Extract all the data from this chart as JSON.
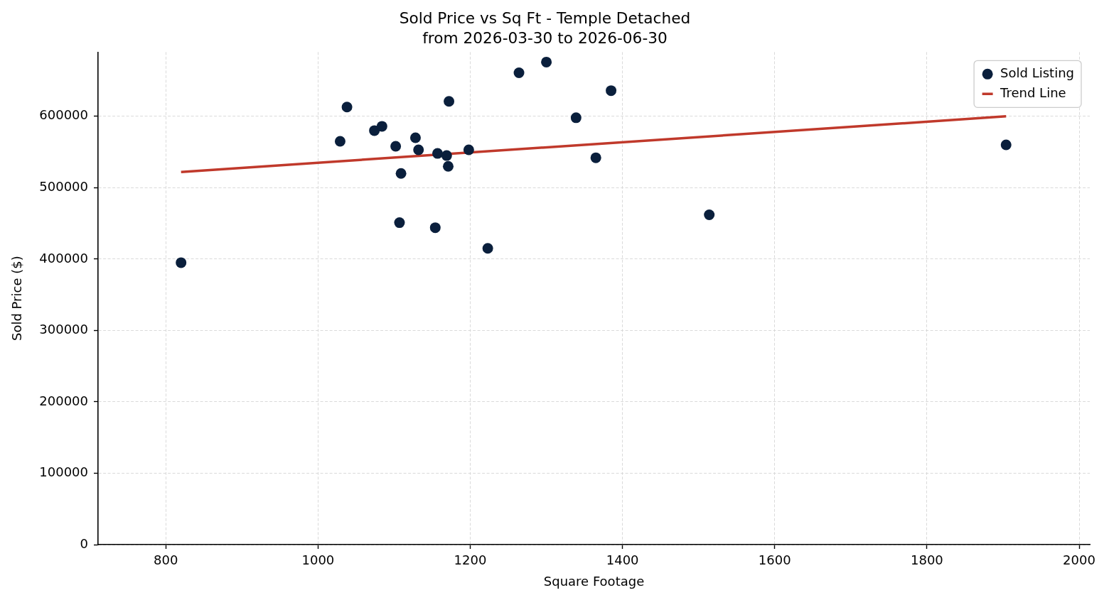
{
  "chart_data": {
    "type": "scatter",
    "title": "Sold Price vs Sq Ft - Temple Detached\nfrom 2026-03-30 to 2026-06-30",
    "xlabel": "Square Footage",
    "ylabel": "Sold Price ($)",
    "series": [
      {
        "name": "Sold Listing",
        "type": "scatter",
        "color": "#0a1f3c",
        "marker": "circle",
        "x": [
          820,
          1029,
          1038,
          1074,
          1084,
          1102,
          1107,
          1109,
          1128,
          1132,
          1154,
          1157,
          1169,
          1171,
          1172,
          1198,
          1223,
          1264,
          1300,
          1339,
          1365,
          1385,
          1514,
          1904
        ],
        "values": [
          395000,
          565000,
          613000,
          580000,
          586000,
          558000,
          451000,
          520000,
          570000,
          553000,
          444000,
          548000,
          545000,
          530000,
          621000,
          553000,
          415000,
          661000,
          676000,
          598000,
          542000,
          636000,
          462000,
          560000
        ]
      },
      {
        "name": "Trend Line",
        "type": "line",
        "color": "#c0392b",
        "x": [
          820,
          1904
        ],
        "values": [
          522000,
          600000
        ]
      }
    ],
    "xlim": [
      711,
      2014
    ],
    "ylim": [
      0,
      690000
    ],
    "xticks": [
      800,
      1000,
      1200,
      1400,
      1600,
      1800,
      2000
    ],
    "yticks": [
      0,
      100000,
      200000,
      300000,
      400000,
      500000,
      600000
    ],
    "grid": true,
    "legend": "top right"
  }
}
